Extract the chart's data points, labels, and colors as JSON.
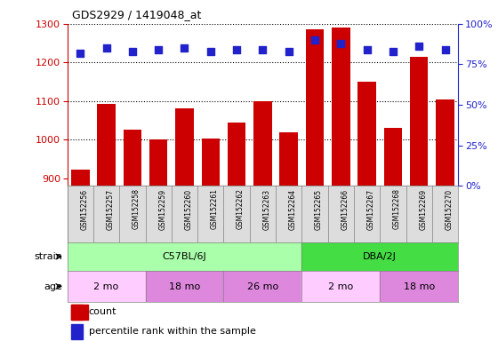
{
  "title": "GDS2929 / 1419048_at",
  "samples": [
    "GSM152256",
    "GSM152257",
    "GSM152258",
    "GSM152259",
    "GSM152260",
    "GSM152261",
    "GSM152262",
    "GSM152263",
    "GSM152264",
    "GSM152265",
    "GSM152266",
    "GSM152267",
    "GSM152268",
    "GSM152269",
    "GSM152270"
  ],
  "counts": [
    922,
    1093,
    1025,
    1000,
    1080,
    1002,
    1045,
    1100,
    1018,
    1285,
    1290,
    1150,
    1030,
    1215,
    1103
  ],
  "percentile_ranks": [
    82,
    85,
    83,
    84,
    85,
    83,
    84,
    84,
    83,
    90,
    88,
    84,
    83,
    86,
    84
  ],
  "ylim_left": [
    880,
    1300
  ],
  "ylim_right": [
    0,
    100
  ],
  "yticks_left": [
    900,
    1000,
    1100,
    1200,
    1300
  ],
  "yticks_right": [
    0,
    25,
    50,
    75,
    100
  ],
  "ytick_labels_right": [
    "0%",
    "25%",
    "50%",
    "75%",
    "100%"
  ],
  "bar_color": "#cc0000",
  "dot_color": "#2222cc",
  "strain_labels": [
    {
      "label": "C57BL/6J",
      "start": 0,
      "end": 9,
      "color": "#aaffaa"
    },
    {
      "label": "DBA/2J",
      "start": 9,
      "end": 15,
      "color": "#44dd44"
    }
  ],
  "age_labels": [
    {
      "label": "2 mo",
      "start": 0,
      "end": 3,
      "color": "#ffccff"
    },
    {
      "label": "18 mo",
      "start": 3,
      "end": 6,
      "color": "#dd88dd"
    },
    {
      "label": "26 mo",
      "start": 6,
      "end": 9,
      "color": "#dd88dd"
    },
    {
      "label": "2 mo",
      "start": 9,
      "end": 12,
      "color": "#ffccff"
    },
    {
      "label": "18 mo",
      "start": 12,
      "end": 15,
      "color": "#dd88dd"
    }
  ],
  "legend_count_label": "count",
  "legend_pct_label": "percentile rank within the sample",
  "axis_color_left": "#cc0000",
  "axis_color_right": "#2222cc",
  "grid_yticks": [
    1000,
    1100,
    1200
  ],
  "dot_size": 40,
  "bar_width": 0.7,
  "xtick_bg_color": "#dddddd"
}
